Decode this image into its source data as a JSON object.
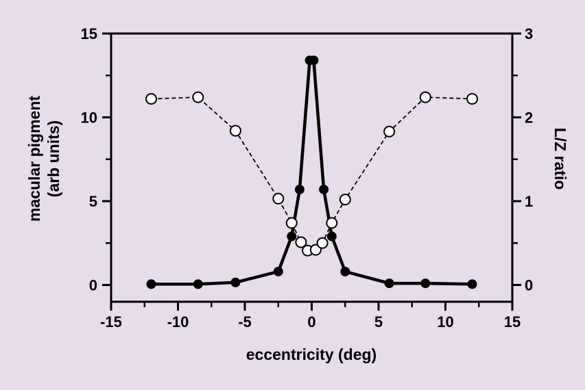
{
  "chart_data": {
    "type": "line",
    "title": "",
    "xlabel": "eccentricity (deg)",
    "ylabel_left": [
      "macular pigment",
      "(arb units)"
    ],
    "ylabel_right": "L/Z ratio",
    "xlim": [
      -15,
      15
    ],
    "ylim_left": [
      -1,
      15
    ],
    "ylim_right": [
      -0.2,
      3
    ],
    "x_ticks": [
      -15,
      -10,
      -5,
      0,
      5,
      10,
      15
    ],
    "x_tick_labels": [
      "-15",
      "-10",
      "-5",
      "0",
      "5",
      "10",
      "15"
    ],
    "y_left_ticks": [
      0,
      5,
      10,
      15
    ],
    "y_left_tick_labels": [
      "0",
      "5",
      "10",
      "15"
    ],
    "y_right_ticks": [
      0,
      1,
      2,
      3
    ],
    "y_right_tick_labels": [
      "0",
      "1",
      "2",
      "3"
    ],
    "grid": false,
    "background": "#e6dcea",
    "series": [
      {
        "axis": "left",
        "style": "solid",
        "marker": "filled-circle",
        "color": "#000000",
        "x": [
          -12,
          -8.5,
          -5.7,
          -2.5,
          -1.5,
          -0.9,
          -0.15,
          0.15,
          0.9,
          1.5,
          2.5,
          5.8,
          8.5,
          12
        ],
        "values": [
          0.05,
          0.05,
          0.15,
          0.8,
          2.9,
          5.7,
          13.4,
          13.4,
          5.7,
          2.9,
          0.8,
          0.1,
          0.1,
          0.05
        ]
      },
      {
        "axis": "right",
        "style": "dashed",
        "marker": "open-circle",
        "color": "#000000",
        "x": [
          -12,
          -8.5,
          -5.7,
          -2.5,
          -1.5,
          -0.8,
          -0.3,
          0.3,
          0.8,
          1.5,
          2.5,
          5.8,
          8.5,
          12
        ],
        "values": [
          2.22,
          2.24,
          1.84,
          1.03,
          0.74,
          0.51,
          0.41,
          0.42,
          0.5,
          0.74,
          1.02,
          1.83,
          2.24,
          2.22
        ]
      }
    ]
  }
}
